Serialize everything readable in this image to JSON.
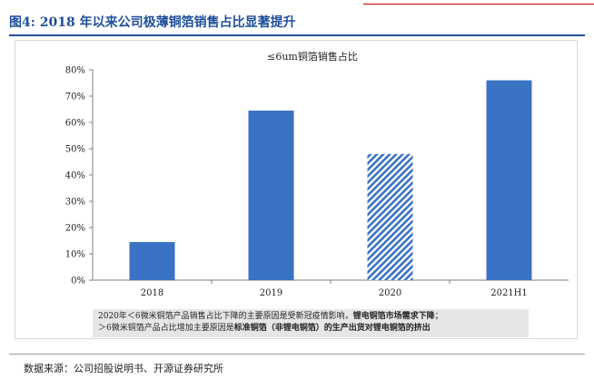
{
  "figure": {
    "title": "图4: 2018 年以来公司极薄铜箔销售占比显著提升"
  },
  "chart_data": {
    "type": "bar",
    "title": "≤6um铜箔销售占比",
    "categories": [
      "2018",
      "2019",
      "2020",
      "2021H1"
    ],
    "values": [
      14.5,
      64.5,
      48,
      76
    ],
    "y_ticks": [
      "0%",
      "10%",
      "20%",
      "30%",
      "40%",
      "50%",
      "60%",
      "70%",
      "80%"
    ],
    "ylim": [
      0,
      80
    ],
    "xlabel": "",
    "ylabel": "",
    "grid": false,
    "bar_color": "#3a72c4",
    "hatched_category": "2020"
  },
  "note": {
    "line1_plain": "2020年＜6微米铜箔产品销售占比下降的主要原因是受新冠疫情影响，",
    "line1_bold": "锂电铜箔市场需求下降",
    "line1_end": "；",
    "line2_plain": "＞6微米铜箔产品占比增加主要原因是",
    "line2_bold": "标准铜箔（非锂电铜箔）的生产出货对锂电铜箔的挤出"
  },
  "source": "数据来源：公司招股说明书、开源证券研究所"
}
